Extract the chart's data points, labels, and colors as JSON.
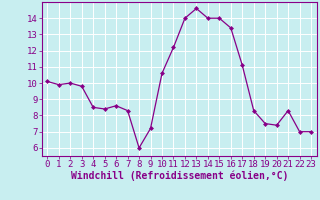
{
  "x": [
    0,
    1,
    2,
    3,
    4,
    5,
    6,
    7,
    8,
    9,
    10,
    11,
    12,
    13,
    14,
    15,
    16,
    17,
    18,
    19,
    20,
    21,
    22,
    23
  ],
  "y": [
    10.1,
    9.9,
    10.0,
    9.8,
    8.5,
    8.4,
    8.6,
    8.3,
    6.0,
    7.2,
    10.6,
    12.2,
    14.0,
    14.6,
    14.0,
    14.0,
    13.4,
    11.1,
    8.3,
    7.5,
    7.4,
    8.3,
    7.0,
    7.0
  ],
  "xlabel": "Windchill (Refroidissement éolien,°C)",
  "xlim": [
    -0.5,
    23.5
  ],
  "ylim": [
    5.5,
    15.0
  ],
  "yticks": [
    6,
    7,
    8,
    9,
    10,
    11,
    12,
    13,
    14
  ],
  "xticks": [
    0,
    1,
    2,
    3,
    4,
    5,
    6,
    7,
    8,
    9,
    10,
    11,
    12,
    13,
    14,
    15,
    16,
    17,
    18,
    19,
    20,
    21,
    22,
    23
  ],
  "line_color": "#880088",
  "marker": "D",
  "marker_size": 2.0,
  "bg_color": "#c8eef0",
  "grid_color": "#ffffff",
  "xlabel_fontsize": 7.0,
  "tick_fontsize": 6.5,
  "linewidth": 0.9
}
